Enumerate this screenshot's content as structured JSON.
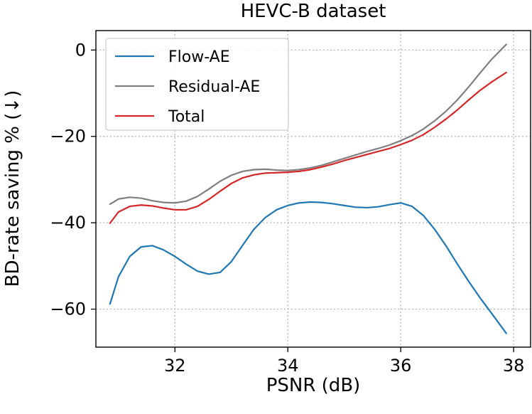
{
  "chart_data": {
    "type": "line",
    "title": "HEVC-B dataset",
    "xlabel": "PSNR (dB)",
    "ylabel": "BD-rate saving % (↓)",
    "xlim": [
      30.6,
      38.3
    ],
    "ylim": [
      -68.8,
      4.5
    ],
    "xticks": [
      32,
      34,
      36,
      38
    ],
    "yticks": [
      0,
      -20,
      -40,
      -60
    ],
    "xtick_labels": [
      "32",
      "34",
      "36",
      "38"
    ],
    "ytick_labels": [
      "0",
      "−20",
      "−40",
      "−60"
    ],
    "grid": true,
    "legend_position": "top-left",
    "series": [
      {
        "name": "Flow-AE",
        "color": "#1f77b4",
        "x": [
          30.85,
          31.0,
          31.2,
          31.4,
          31.6,
          31.8,
          32.0,
          32.2,
          32.4,
          32.6,
          32.8,
          33.0,
          33.2,
          33.4,
          33.6,
          33.8,
          34.0,
          34.2,
          34.4,
          34.6,
          34.8,
          35.0,
          35.2,
          35.4,
          35.6,
          35.8,
          36.0,
          36.2,
          36.4,
          36.6,
          36.8,
          37.0,
          37.2,
          37.4,
          37.6,
          37.87
        ],
        "y": [
          -58.8,
          -52.5,
          -47.8,
          -45.6,
          -45.3,
          -46.3,
          -47.8,
          -49.6,
          -51.2,
          -51.9,
          -51.5,
          -49.0,
          -45.2,
          -41.5,
          -38.8,
          -37.0,
          -36.0,
          -35.4,
          -35.2,
          -35.3,
          -35.6,
          -36.0,
          -36.4,
          -36.5,
          -36.3,
          -35.8,
          -35.4,
          -36.2,
          -38.3,
          -41.5,
          -45.3,
          -49.5,
          -53.5,
          -57.3,
          -60.8,
          -65.6
        ]
      },
      {
        "name": "Residual-AE",
        "color": "#7f7f7f",
        "x": [
          30.85,
          31.0,
          31.2,
          31.4,
          31.6,
          31.8,
          32.0,
          32.2,
          32.4,
          32.6,
          32.8,
          33.0,
          33.2,
          33.4,
          33.6,
          33.8,
          34.0,
          34.2,
          34.4,
          34.6,
          34.8,
          35.0,
          35.2,
          35.4,
          35.6,
          35.8,
          36.0,
          36.2,
          36.4,
          36.6,
          36.8,
          37.0,
          37.2,
          37.4,
          37.6,
          37.87
        ],
        "y": [
          -35.7,
          -34.5,
          -34.1,
          -34.3,
          -34.9,
          -35.3,
          -35.4,
          -35.0,
          -33.9,
          -32.2,
          -30.4,
          -29.0,
          -28.1,
          -27.7,
          -27.6,
          -27.8,
          -27.9,
          -27.7,
          -27.3,
          -26.7,
          -25.9,
          -25.1,
          -24.3,
          -23.5,
          -22.8,
          -22.0,
          -21.0,
          -19.8,
          -18.3,
          -16.4,
          -14.2,
          -11.6,
          -8.6,
          -5.4,
          -2.3,
          1.3
        ]
      },
      {
        "name": "Total",
        "color": "#d62728",
        "x": [
          30.85,
          31.0,
          31.2,
          31.4,
          31.6,
          31.8,
          32.0,
          32.2,
          32.4,
          32.6,
          32.8,
          33.0,
          33.2,
          33.4,
          33.6,
          33.8,
          34.0,
          34.2,
          34.4,
          34.6,
          34.8,
          35.0,
          35.2,
          35.4,
          35.6,
          35.8,
          36.0,
          36.2,
          36.4,
          36.6,
          36.8,
          37.0,
          37.2,
          37.4,
          37.6,
          37.87
        ],
        "y": [
          -40.1,
          -37.5,
          -36.2,
          -35.9,
          -36.1,
          -36.6,
          -37.0,
          -37.0,
          -36.2,
          -34.6,
          -32.7,
          -30.9,
          -29.6,
          -28.9,
          -28.5,
          -28.4,
          -28.3,
          -28.1,
          -27.7,
          -27.1,
          -26.4,
          -25.6,
          -24.9,
          -24.2,
          -23.5,
          -22.8,
          -21.9,
          -20.9,
          -19.6,
          -17.9,
          -16.0,
          -13.9,
          -11.6,
          -9.4,
          -7.5,
          -5.2
        ]
      }
    ]
  }
}
